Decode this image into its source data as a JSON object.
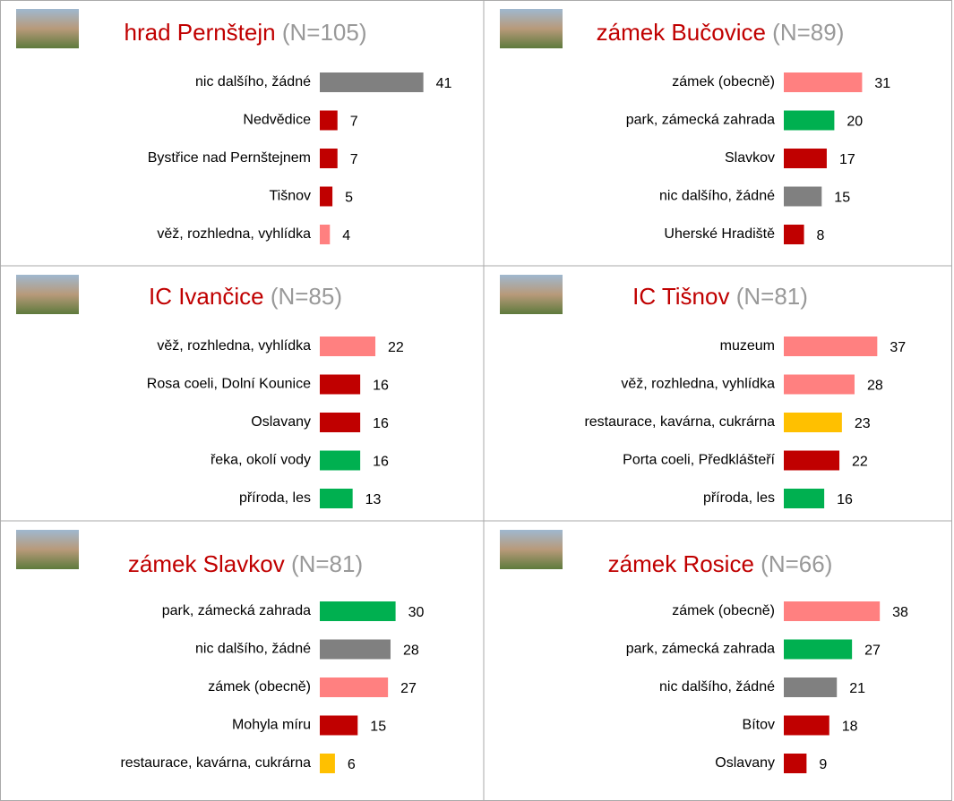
{
  "chart_data": [
    {
      "type": "bar",
      "orientation": "horizontal",
      "title": "hrad Pernštejn",
      "subtitle": "(N=105)",
      "categories": [
        "nic dalšího, žádné",
        "Nedvědice",
        "Bystřice nad Pernštejnem",
        "Tišnov",
        "věž, rozhledna, vyhlídka"
      ],
      "values": [
        41,
        7,
        7,
        5,
        4
      ],
      "colors": [
        "#808080",
        "#c00000",
        "#c00000",
        "#c00000",
        "#ff8080"
      ]
    },
    {
      "type": "bar",
      "orientation": "horizontal",
      "title": "zámek Bučovice",
      "subtitle": "(N=89)",
      "categories": [
        "zámek (obecně)",
        "park, zámecká zahrada",
        "Slavkov",
        "nic dalšího, žádné",
        "Uherské Hradiště"
      ],
      "values": [
        31,
        20,
        17,
        15,
        8
      ],
      "colors": [
        "#ff8080",
        "#00b050",
        "#c00000",
        "#808080",
        "#c00000"
      ]
    },
    {
      "type": "bar",
      "orientation": "horizontal",
      "title": "IC Ivančice",
      "subtitle": "(N=85)",
      "categories": [
        "věž, rozhledna, vyhlídka",
        "Rosa coeli, Dolní Kounice",
        "Oslavany",
        "řeka, okolí vody",
        "příroda, les"
      ],
      "values": [
        22,
        16,
        16,
        16,
        13
      ],
      "colors": [
        "#ff8080",
        "#c00000",
        "#c00000",
        "#00b050",
        "#00b050"
      ]
    },
    {
      "type": "bar",
      "orientation": "horizontal",
      "title": "IC Tišnov",
      "subtitle": "(N=81)",
      "categories": [
        "muzeum",
        "věž, rozhledna, vyhlídka",
        "restaurace, kavárna, cukrárna",
        "Porta coeli, Předklášteří",
        "příroda, les"
      ],
      "values": [
        37,
        28,
        23,
        22,
        16
      ],
      "colors": [
        "#ff8080",
        "#ff8080",
        "#ffc000",
        "#c00000",
        "#00b050"
      ]
    },
    {
      "type": "bar",
      "orientation": "horizontal",
      "title": "zámek Slavkov",
      "subtitle": "(N=81)",
      "categories": [
        "park, zámecká zahrada",
        "nic dalšího, žádné",
        "zámek (obecně)",
        "Mohyla míru",
        "restaurace, kavárna, cukrárna"
      ],
      "values": [
        30,
        28,
        27,
        15,
        6
      ],
      "colors": [
        "#00b050",
        "#808080",
        "#ff8080",
        "#c00000",
        "#ffc000"
      ]
    },
    {
      "type": "bar",
      "orientation": "horizontal",
      "title": "zámek Rosice",
      "subtitle": "(N=66)",
      "categories": [
        "zámek (obecně)",
        "park, zámecká zahrada",
        "nic dalšího, žádné",
        "Bítov",
        "Oslavany"
      ],
      "values": [
        38,
        27,
        21,
        18,
        9
      ],
      "colors": [
        "#ff8080",
        "#00b050",
        "#808080",
        "#c00000",
        "#c00000"
      ]
    }
  ]
}
